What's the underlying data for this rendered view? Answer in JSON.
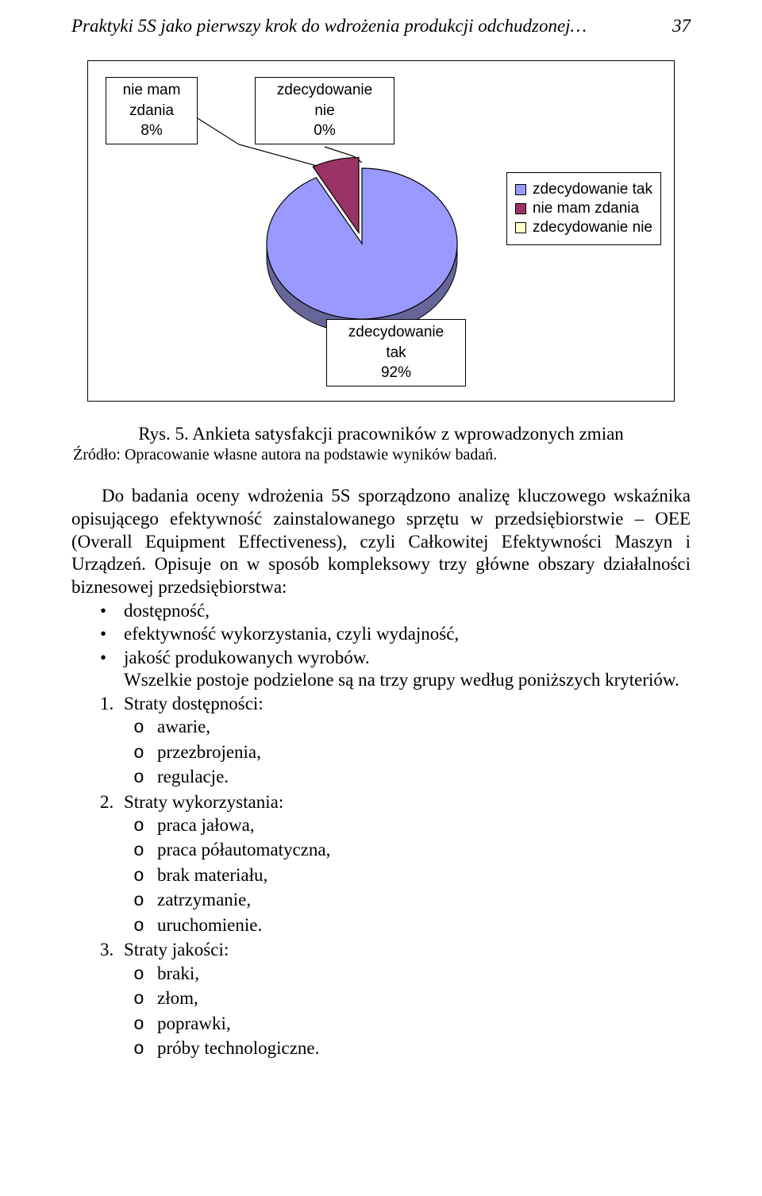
{
  "header": {
    "title": "Praktyki 5S jako pierwszy krok do wdrożenia produkcji odchudzonej…",
    "page": "37"
  },
  "chart": {
    "type": "pie",
    "slices": [
      {
        "label": "zdecydowanie tak",
        "pct": 92,
        "color": "#9999ff"
      },
      {
        "label": "nie mam zdania",
        "pct": 8,
        "color": "#993366"
      },
      {
        "label": "zdecydowanie nie",
        "pct": 0,
        "color": "#ffffcc"
      }
    ],
    "depth_color": "#666699",
    "explode_index": 1,
    "border_color": "#000000",
    "background_color": "#ffffff",
    "callouts": {
      "nie_mam": {
        "line1": "nie mam",
        "line2": "zdania",
        "line3": "8%"
      },
      "zdec_nie": {
        "line1": "zdecydowanie",
        "line2": "nie",
        "line3": "0%"
      },
      "zdec_tak": {
        "line1": "zdecydowanie",
        "line2": "tak",
        "line3": "92%"
      }
    },
    "legend": [
      {
        "label": "zdecydowanie tak",
        "color": "#9999ff"
      },
      {
        "label": "nie mam zdania",
        "color": "#993366"
      },
      {
        "label": "zdecydowanie nie",
        "color": "#ffffcc"
      }
    ]
  },
  "caption": "Rys. 5. Ankieta satysfakcji pracowników z wprowadzonych zmian",
  "source": "Źródło: Opracowanie własne autora na podstawie wyników badań.",
  "para": "Do badania oceny wdrożenia 5S sporządzono analizę kluczowego wskaźnika opisującego efektywność zainstalowanego sprzętu w przedsiębiorstwie – OEE (Overall Equipment Effectiveness), czyli Całkowitej Efektywności Maszyn i Urządzeń. Opisuje on w sposób kompleksowy trzy główne obszary działalności biznesowej przedsiębiorstwa:",
  "bullets": [
    "dostępność,",
    "efektywność wykorzystania, czyli wydajność,",
    "jakość produkowanych wyrobów."
  ],
  "after_bullets": "Wszelkie postoje podzielone są na trzy grupy według poniższych kryteriów.",
  "groups": [
    {
      "num": "1.",
      "title": "Straty dostępności:",
      "items": [
        "awarie,",
        "przezbrojenia,",
        "regulacje."
      ]
    },
    {
      "num": "2.",
      "title": "Straty wykorzystania:",
      "items": [
        "praca jałowa,",
        "praca półautomatyczna,",
        "brak materiału,",
        "zatrzymanie,",
        "uruchomienie."
      ]
    },
    {
      "num": "3.",
      "title": "Straty jakości:",
      "items": [
        "braki,",
        "złom,",
        "poprawki,",
        "próby technologiczne."
      ]
    }
  ]
}
